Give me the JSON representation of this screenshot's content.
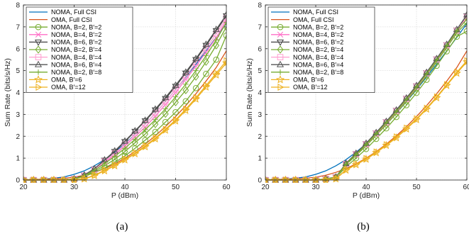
{
  "chart_data": [
    {
      "type": "line",
      "caption": "(a)",
      "xlabel": "P (dBm)",
      "ylabel": "Sum Rate (bits/s/Hz)",
      "xlim": [
        20,
        60
      ],
      "ylim": [
        0,
        8
      ],
      "xticks": [
        20,
        30,
        40,
        50,
        60
      ],
      "yticks": [
        0,
        1,
        2,
        3,
        4,
        5,
        6,
        7,
        8
      ],
      "grid": true,
      "legend": "top-left",
      "x": [
        20,
        22,
        24,
        26,
        28,
        30,
        32,
        34,
        36,
        38,
        40,
        42,
        44,
        46,
        48,
        50,
        52,
        54,
        56,
        58,
        60
      ],
      "series": [
        {
          "name": "NOMA, Full CSI",
          "color": "#0072BD",
          "marker": "none",
          "values": [
            0.01,
            0.02,
            0.04,
            0.08,
            0.14,
            0.26,
            0.42,
            0.65,
            0.93,
            1.27,
            1.65,
            2.08,
            2.55,
            3.05,
            3.58,
            4.13,
            4.7,
            5.29,
            5.9,
            6.52,
            7.15
          ]
        },
        {
          "name": "OMA, Full CSI",
          "color": "#D95319",
          "marker": "none",
          "values": [
            0.01,
            0.02,
            0.03,
            0.05,
            0.08,
            0.13,
            0.22,
            0.35,
            0.52,
            0.74,
            1.0,
            1.3,
            1.64,
            2.02,
            2.44,
            2.9,
            3.4,
            3.94,
            4.52,
            5.14,
            5.9
          ]
        },
        {
          "name": "NOMA, B=2, B′=2",
          "color": "#77AC30",
          "marker": "circle",
          "values": [
            0.0,
            0.0,
            0.0,
            0.0,
            0.0,
            0.05,
            0.15,
            0.35,
            0.55,
            0.8,
            1.1,
            1.45,
            1.82,
            2.2,
            2.65,
            3.1,
            3.6,
            4.2,
            4.85,
            5.5,
            6.6
          ]
        },
        {
          "name": "NOMA, B=4, B′=2",
          "color": "#FF6EC7",
          "marker": "x",
          "values": [
            0.0,
            0.0,
            0.0,
            0.0,
            0.0,
            0.05,
            0.2,
            0.45,
            0.8,
            1.15,
            1.55,
            1.98,
            2.42,
            2.92,
            3.45,
            4.0,
            4.6,
            5.2,
            5.85,
            6.5,
            7.3
          ]
        },
        {
          "name": "NOMA, B=6, B′=2",
          "color": "#404040",
          "marker": "triangle-down",
          "values": [
            0.0,
            0.0,
            0.0,
            0.0,
            0.0,
            0.05,
            0.22,
            0.5,
            0.9,
            1.3,
            1.75,
            2.22,
            2.7,
            3.2,
            3.72,
            4.28,
            4.88,
            5.5,
            6.15,
            6.82,
            7.5
          ]
        },
        {
          "name": "NOMA, B=2, B′=4",
          "color": "#77AC30",
          "marker": "diamond",
          "values": [
            0.0,
            0.0,
            0.0,
            0.0,
            0.0,
            0.05,
            0.18,
            0.4,
            0.65,
            0.95,
            1.3,
            1.7,
            2.1,
            2.55,
            3.02,
            3.55,
            4.1,
            4.72,
            5.4,
            6.15,
            7.0
          ]
        },
        {
          "name": "NOMA, B=4, B′=4",
          "color": "#FF9FD0",
          "marker": "square",
          "values": [
            0.0,
            0.0,
            0.0,
            0.0,
            0.0,
            0.05,
            0.2,
            0.47,
            0.85,
            1.22,
            1.62,
            2.07,
            2.55,
            3.05,
            3.58,
            4.13,
            4.73,
            5.35,
            6.0,
            6.68,
            7.4
          ]
        },
        {
          "name": "NOMA, B=6, B′=4",
          "color": "#555555",
          "marker": "triangle-up",
          "values": [
            0.0,
            0.0,
            0.0,
            0.0,
            0.0,
            0.05,
            0.23,
            0.52,
            0.92,
            1.33,
            1.78,
            2.25,
            2.73,
            3.24,
            3.77,
            4.33,
            4.93,
            5.55,
            6.2,
            6.88,
            7.55
          ]
        },
        {
          "name": "NOMA, B=2, B′=8",
          "color": "#77AC30",
          "marker": "plus",
          "values": [
            0.0,
            0.0,
            0.0,
            0.0,
            0.0,
            0.05,
            0.2,
            0.45,
            0.75,
            1.08,
            1.45,
            1.86,
            2.3,
            2.76,
            3.25,
            3.8,
            4.38,
            5.0,
            5.68,
            6.4,
            7.2
          ]
        },
        {
          "name": "OMA, B′=6",
          "color": "#EDB120",
          "marker": "star",
          "values": [
            0.0,
            0.0,
            0.0,
            0.0,
            0.0,
            0.0,
            0.05,
            0.2,
            0.42,
            0.65,
            0.92,
            1.2,
            1.52,
            1.88,
            2.28,
            2.7,
            3.18,
            3.7,
            4.25,
            4.8,
            5.35
          ]
        },
        {
          "name": "OMA, B′=12",
          "color": "#EDB120",
          "marker": "triangle-right",
          "values": [
            0.0,
            0.0,
            0.0,
            0.0,
            0.0,
            0.0,
            0.06,
            0.22,
            0.45,
            0.68,
            0.95,
            1.23,
            1.56,
            1.92,
            2.32,
            2.75,
            3.24,
            3.76,
            4.32,
            4.88,
            5.45
          ]
        }
      ]
    },
    {
      "type": "line",
      "caption": "(b)",
      "xlabel": "P (dBm)",
      "ylabel": "Sum Rate (bits/s/Hz)",
      "xlim": [
        20,
        60
      ],
      "ylim": [
        0,
        8
      ],
      "xticks": [
        20,
        30,
        40,
        50,
        60
      ],
      "yticks": [
        0,
        1,
        2,
        3,
        4,
        5,
        6,
        7,
        8
      ],
      "grid": true,
      "legend": "top-left",
      "x": [
        20,
        22,
        24,
        26,
        28,
        30,
        32,
        34,
        36,
        38,
        40,
        42,
        44,
        46,
        48,
        50,
        52,
        54,
        56,
        58,
        60
      ],
      "series": [
        {
          "name": "NOMA, Full CSI",
          "color": "#0072BD",
          "marker": "none",
          "values": [
            0.01,
            0.02,
            0.04,
            0.08,
            0.14,
            0.26,
            0.42,
            0.65,
            0.93,
            1.27,
            1.65,
            2.08,
            2.55,
            3.05,
            3.58,
            4.13,
            4.7,
            5.29,
            5.9,
            6.52,
            7.15
          ]
        },
        {
          "name": "OMA, Full CSI",
          "color": "#D95319",
          "marker": "none",
          "values": [
            0.01,
            0.02,
            0.03,
            0.05,
            0.08,
            0.13,
            0.22,
            0.35,
            0.52,
            0.74,
            1.0,
            1.3,
            1.64,
            2.02,
            2.44,
            2.9,
            3.4,
            3.94,
            4.52,
            5.14,
            5.9
          ]
        },
        {
          "name": "NOMA, B=2, B′=2",
          "color": "#77AC30",
          "marker": "circle",
          "values": [
            0.0,
            0.0,
            0.0,
            0.0,
            0.0,
            0.0,
            0.05,
            0.1,
            0.6,
            1.0,
            1.42,
            1.88,
            2.36,
            2.88,
            3.42,
            3.98,
            4.58,
            5.22,
            5.88,
            6.55,
            6.8
          ]
        },
        {
          "name": "NOMA, B=4, B′=2",
          "color": "#FF6EC7",
          "marker": "x",
          "values": [
            0.0,
            0.0,
            0.0,
            0.0,
            0.0,
            0.0,
            0.05,
            0.12,
            0.72,
            1.15,
            1.6,
            2.08,
            2.58,
            3.1,
            3.65,
            4.22,
            4.82,
            5.45,
            6.1,
            6.78,
            7.4
          ]
        },
        {
          "name": "NOMA, B=6, B′=2",
          "color": "#404040",
          "marker": "triangle-down",
          "values": [
            0.0,
            0.0,
            0.0,
            0.0,
            0.0,
            0.0,
            0.05,
            0.13,
            0.75,
            1.2,
            1.66,
            2.15,
            2.66,
            3.18,
            3.73,
            4.3,
            4.9,
            5.53,
            6.18,
            6.85,
            7.5
          ]
        },
        {
          "name": "NOMA, B=2, B′=4",
          "color": "#77AC30",
          "marker": "diamond",
          "values": [
            0.0,
            0.0,
            0.0,
            0.0,
            0.0,
            0.0,
            0.05,
            0.12,
            0.7,
            1.12,
            1.56,
            2.04,
            2.53,
            3.05,
            3.6,
            4.16,
            4.76,
            5.4,
            6.05,
            6.72,
            7.2
          ]
        },
        {
          "name": "NOMA, B=4, B′=4",
          "color": "#FF9FD0",
          "marker": "square",
          "values": [
            0.0,
            0.0,
            0.0,
            0.0,
            0.0,
            0.0,
            0.05,
            0.13,
            0.74,
            1.18,
            1.64,
            2.13,
            2.64,
            3.16,
            3.71,
            4.28,
            4.88,
            5.51,
            6.16,
            6.83,
            7.45
          ]
        },
        {
          "name": "NOMA, B=6, B′=4",
          "color": "#555555",
          "marker": "triangle-up",
          "values": [
            0.0,
            0.0,
            0.0,
            0.0,
            0.0,
            0.0,
            0.05,
            0.14,
            0.76,
            1.22,
            1.68,
            2.17,
            2.68,
            3.2,
            3.75,
            4.32,
            4.92,
            5.55,
            6.2,
            6.88,
            7.55
          ]
        },
        {
          "name": "NOMA, B=2, B′=8",
          "color": "#77AC30",
          "marker": "plus",
          "values": [
            0.0,
            0.0,
            0.0,
            0.0,
            0.0,
            0.0,
            0.05,
            0.13,
            0.73,
            1.17,
            1.63,
            2.12,
            2.62,
            3.14,
            3.69,
            4.26,
            4.86,
            5.49,
            6.14,
            6.82,
            7.35
          ]
        },
        {
          "name": "OMA, B′=6",
          "color": "#EDB120",
          "marker": "star",
          "values": [
            0.0,
            0.0,
            0.0,
            0.0,
            0.0,
            0.0,
            0.0,
            0.05,
            0.45,
            0.7,
            0.95,
            1.25,
            1.58,
            1.93,
            2.33,
            2.76,
            3.24,
            3.76,
            4.32,
            4.88,
            5.4
          ]
        },
        {
          "name": "OMA, B′=12",
          "color": "#EDB120",
          "marker": "triangle-right",
          "values": [
            0.0,
            0.0,
            0.0,
            0.0,
            0.0,
            0.0,
            0.0,
            0.06,
            0.47,
            0.72,
            0.98,
            1.28,
            1.61,
            1.97,
            2.37,
            2.8,
            3.28,
            3.8,
            4.36,
            4.92,
            5.45
          ]
        }
      ]
    }
  ]
}
